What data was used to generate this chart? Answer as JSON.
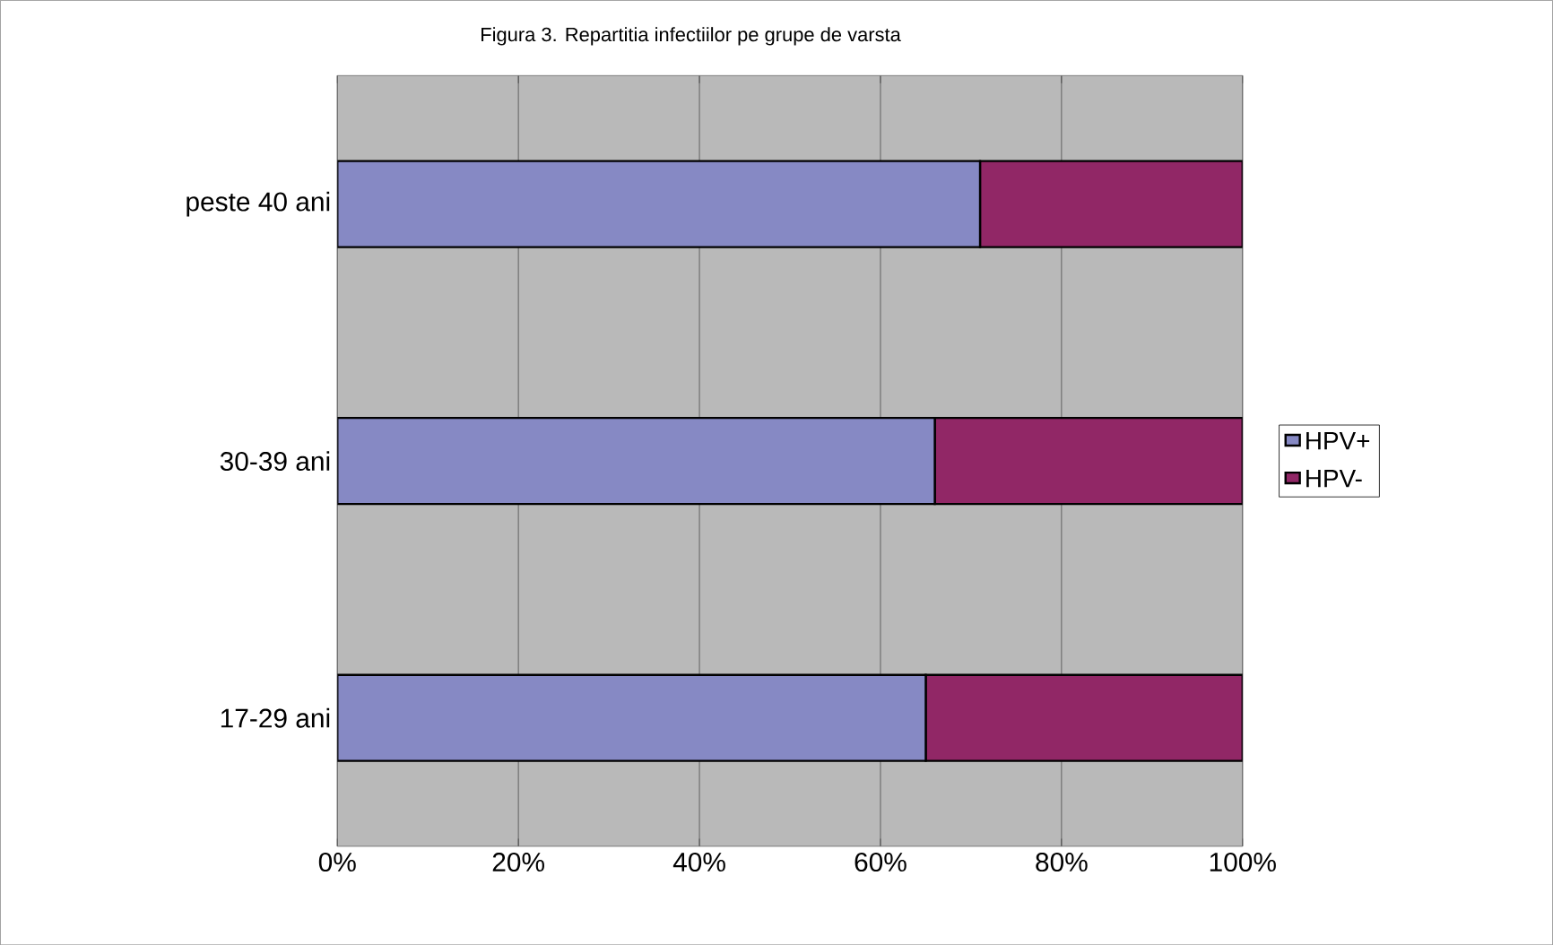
{
  "chart_data": {
    "type": "bar",
    "orientation": "horizontal",
    "stacked": true,
    "title": "Figura 3. Repartitia infectiilor pe grupe de varsta",
    "categories": [
      "peste 40 ani",
      "30-39 ani",
      "17-29 ani"
    ],
    "series": [
      {
        "name": "HPV+",
        "color": "#8689c4",
        "values": [
          71,
          66,
          65
        ]
      },
      {
        "name": "HPV-",
        "color": "#912766",
        "values": [
          29,
          34,
          35
        ]
      }
    ],
    "xlim": [
      0,
      100
    ],
    "xticks": [
      {
        "value": 0,
        "label": "0%"
      },
      {
        "value": 20,
        "label": "20%"
      },
      {
        "value": 40,
        "label": "40%"
      },
      {
        "value": 60,
        "label": "60%"
      },
      {
        "value": 80,
        "label": "80%"
      },
      {
        "value": 100,
        "label": "100%"
      }
    ],
    "grid": "x",
    "legend": "right"
  }
}
